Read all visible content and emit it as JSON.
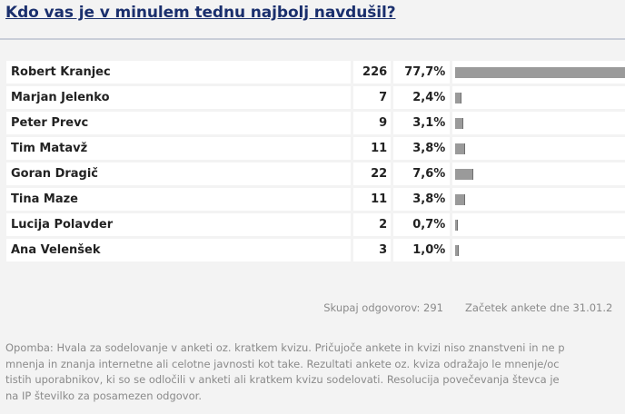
{
  "poll": {
    "title": "Kdo vas je v minulem tednu najbolj navdušil?",
    "options": [
      {
        "name": "Robert Kranjec",
        "count": "226",
        "percent_label": "77,7%",
        "percent": 77.7
      },
      {
        "name": "Marjan Jelenko",
        "count": "7",
        "percent_label": "2,4%",
        "percent": 2.4
      },
      {
        "name": "Peter Prevc",
        "count": "9",
        "percent_label": "3,1%",
        "percent": 3.1
      },
      {
        "name": "Tim Matavž",
        "count": "11",
        "percent_label": "3,8%",
        "percent": 3.8
      },
      {
        "name": "Goran Dragič",
        "count": "22",
        "percent_label": "7,6%",
        "percent": 7.6
      },
      {
        "name": "Tina Maze",
        "count": "11",
        "percent_label": "3,8%",
        "percent": 3.8
      },
      {
        "name": "Lucija Polavder",
        "count": "2",
        "percent_label": "0,7%",
        "percent": 0.7
      },
      {
        "name": "Ana Velenšek",
        "count": "3",
        "percent_label": "1,0%",
        "percent": 1.0
      }
    ],
    "total_label": "Skupaj odgovorov: 291",
    "started_label": "Začetek ankete dne 31.01.2",
    "note_lines": [
      "Opomba: Hvala za sodelovanje v anketi oz. kratkem kvizu. Pričujoče ankete in kvizi niso znanstveni in ne p",
      "mnenja in znanja internetne ali celotne javnosti kot take. Rezultati ankete oz. kviza odražajo le mnenje/oc",
      "tistih uporabnikov, ki so se odločili v anketi ali kratkem kvizu sodelovati. Resolucija povečevanja števca je",
      "na IP številko za posamezen odgovor."
    ]
  },
  "colors": {
    "title": "#1a2f6d",
    "bar": "#9a9a9a",
    "muted_text": "#8a8a8a",
    "background": "#f3f3f3"
  }
}
